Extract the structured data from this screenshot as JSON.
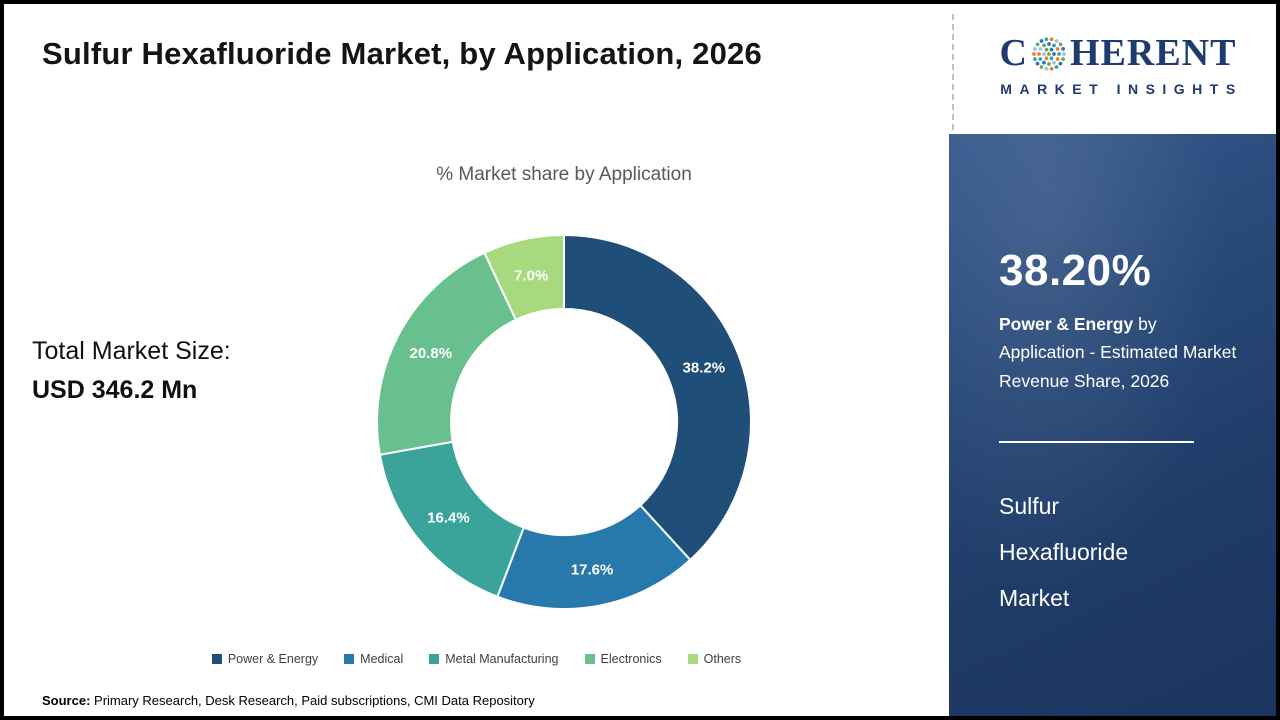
{
  "page": {
    "title": "Sulfur Hexafluoride Market, by Application, 2026"
  },
  "logo": {
    "prefix": "C",
    "suffix": "HERENT",
    "tagline": "MARKET INSIGHTS",
    "brand_color": "#1e3a6e",
    "dot_colors": [
      "#6ea84f",
      "#2e75b6",
      "#3aa6a0",
      "#ed7d31",
      "#9dc3e6"
    ]
  },
  "summary": {
    "total_label": "Total Market Size:",
    "total_value": "USD 346.2 Mn"
  },
  "chart_data": {
    "type": "pie",
    "subtype": "donut",
    "title": "% Market share by Application",
    "categories": [
      "Power & Energy",
      "Medical",
      "Metal Manufacturing",
      "Electronics",
      "Others"
    ],
    "values": [
      38.2,
      17.6,
      16.4,
      20.8,
      7.0
    ],
    "data_labels": [
      "38.2%",
      "17.6%",
      "16.4%",
      "20.8%",
      "7.0%"
    ],
    "colors": [
      "#1f4e79",
      "#2879ab",
      "#3aa49b",
      "#68c08e",
      "#a7d97e"
    ],
    "start_angle_deg": 0,
    "direction": "clockwise",
    "legend_position": "bottom",
    "label_color": "#ffffff"
  },
  "sidebar": {
    "stat_value": "38.20%",
    "desc_bold": "Power & Energy",
    "desc_rest": " by Application - Estimated Market Revenue Share, 2026",
    "market_lines": [
      "Sulfur",
      "Hexafluoride",
      "Market"
    ]
  },
  "footer": {
    "source_label": "Source:",
    "source_text": " Primary Research, Desk Research, Paid subscriptions, CMI Data Repository"
  }
}
